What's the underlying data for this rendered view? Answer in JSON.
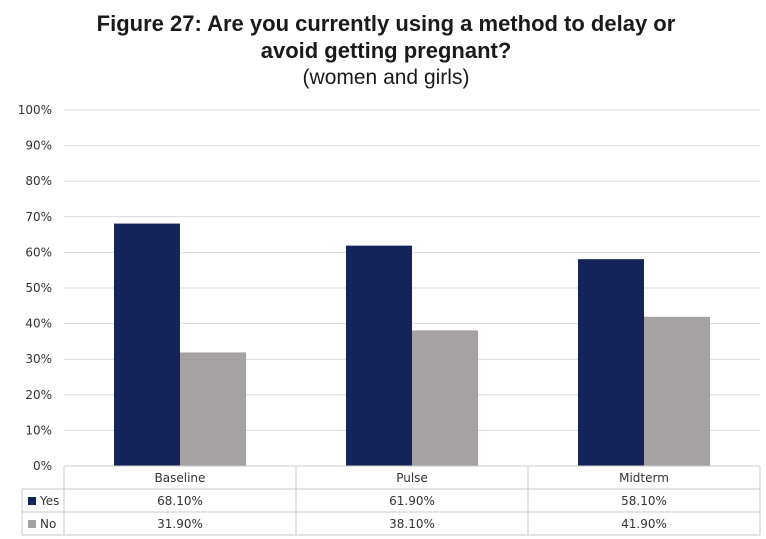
{
  "chart_data": {
    "type": "bar",
    "title": "Figure 27: Are you currently using a method to delay or avoid getting pregnant?",
    "title_lines": [
      "Figure 27: Are you currently using a method to delay or",
      "avoid getting pregnant?"
    ],
    "subtitle": "(women and girls)",
    "xlabel": "",
    "ylabel": "",
    "categories": [
      "Baseline",
      "Pulse",
      "Midterm"
    ],
    "series": [
      {
        "name": "Yes",
        "color": "#14235a",
        "values": [
          68.1,
          61.9,
          58.1
        ],
        "labels": [
          "68.10%",
          "61.90%",
          "58.10%"
        ]
      },
      {
        "name": "No",
        "color": "#a6a2a3",
        "values": [
          31.9,
          38.1,
          41.9
        ],
        "labels": [
          "31.90%",
          "38.10%",
          "41.90%"
        ]
      }
    ],
    "ylim": [
      0,
      100
    ],
    "yticks": [
      "0%",
      "10%",
      "20%",
      "30%",
      "40%",
      "50%",
      "60%",
      "70%",
      "80%",
      "90%",
      "100%"
    ],
    "grid": true,
    "legend": "data table below chart"
  }
}
